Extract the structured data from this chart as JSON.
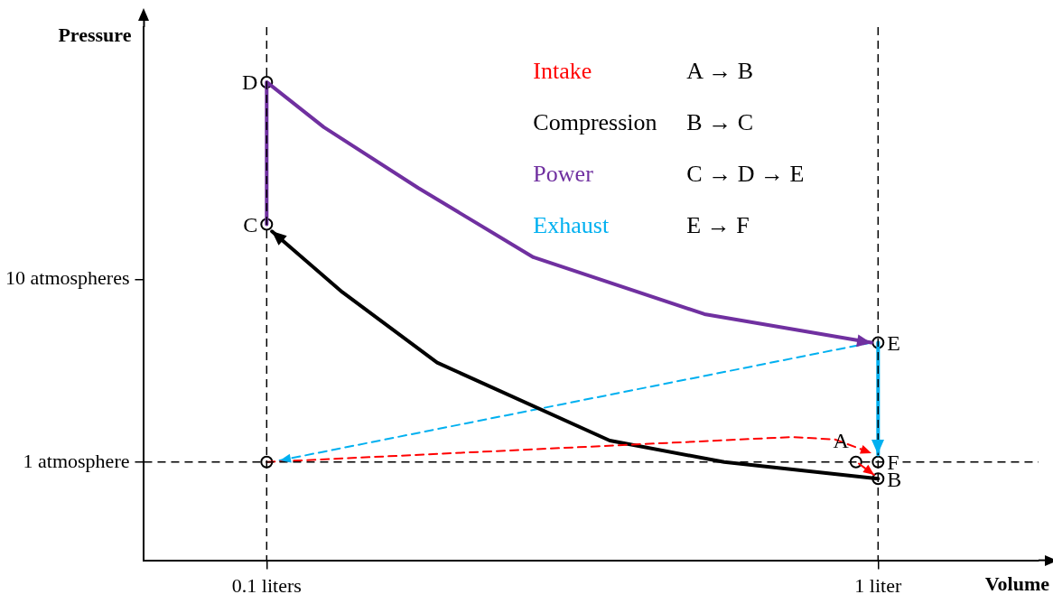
{
  "chart_data": {
    "type": "line",
    "xlabel": "Volume",
    "ylabel": "Pressure",
    "log": "xy",
    "xlim": [
      0.063,
      1.83
    ],
    "ylim": [
      0.29,
      240
    ],
    "xticks": [
      {
        "value": 0.1,
        "label": "0.1 liters"
      },
      {
        "value": 1,
        "label": "1 liter"
      }
    ],
    "yticks": [
      {
        "value": 1,
        "label": "1 atmosphere"
      },
      {
        "value": 10,
        "label": "10 atmospheres"
      }
    ],
    "grid": false,
    "legend": "top right",
    "marker": "none",
    "series": [
      {
        "name": "Intake",
        "color": "#ff0000",
        "line_style": "dashed",
        "x": [
          0.1,
          0.72,
          0.85,
          0.975
        ],
        "values": [
          1,
          1.37,
          1.33,
          1.12
        ]
      },
      {
        "name": "Compression",
        "color": "#000000",
        "line_style": "solid",
        "x": [
          1,
          0.56,
          0.364,
          0.19,
          0.133,
          0.102
        ],
        "values": [
          0.81,
          1,
          1.31,
          3.5,
          8.5,
          18.3
        ]
      },
      {
        "name": "Power",
        "color": "#7030a0",
        "line_style": "solid",
        "x": [
          0.1,
          0.1,
          0.124,
          0.177,
          0.273,
          0.52,
          0.975
        ],
        "values": [
          20,
          120,
          68,
          31.6,
          13.2,
          6.45,
          4.5
        ]
      },
      {
        "name": "Exhaust",
        "color": "#00b0f0",
        "line_style": "solid",
        "x": [
          1,
          1
        ],
        "values": [
          4.5,
          1.1
        ]
      },
      {
        "color": "#00b0f0",
        "line_style": "dashed",
        "x": [
          0.975,
          0.105
        ],
        "values": [
          4.5,
          1.02
        ]
      },
      {
        "color": "#ff0000",
        "line_style": "dashed",
        "x": [
          0.93,
          0.985
        ],
        "values": [
          0.98,
          0.85
        ]
      },
      {
        "type": "scatter",
        "marker": "circle",
        "color": "#000000",
        "x": [
          0.1,
          0.1,
          0.1,
          1,
          1,
          0.92,
          1
        ],
        "values": [
          1,
          20,
          120,
          4.5,
          1,
          1,
          0.81
        ]
      }
    ],
    "ref_lines": [
      {
        "axis": "x",
        "value": 0.1,
        "line_style": "dashed",
        "color": "#000000"
      },
      {
        "axis": "x",
        "value": 1,
        "line_style": "dashed",
        "color": "#000000"
      },
      {
        "axis": "y",
        "value": 1,
        "line_style": "dashed",
        "color": "#000000"
      }
    ],
    "annotations": [
      "A → B",
      "B → C",
      "C → D → E",
      "E → F",
      {
        "text": "A",
        "x": 0.92,
        "y": 1
      },
      {
        "text": "B",
        "x": 1,
        "y": 0.81
      },
      {
        "text": "C",
        "x": 0.1,
        "y": 20
      },
      {
        "text": "D",
        "x": 0.1,
        "y": 120
      },
      {
        "text": "E",
        "x": 1,
        "y": 4.5
      },
      {
        "text": "F",
        "x": 1,
        "y": 1
      }
    ]
  }
}
